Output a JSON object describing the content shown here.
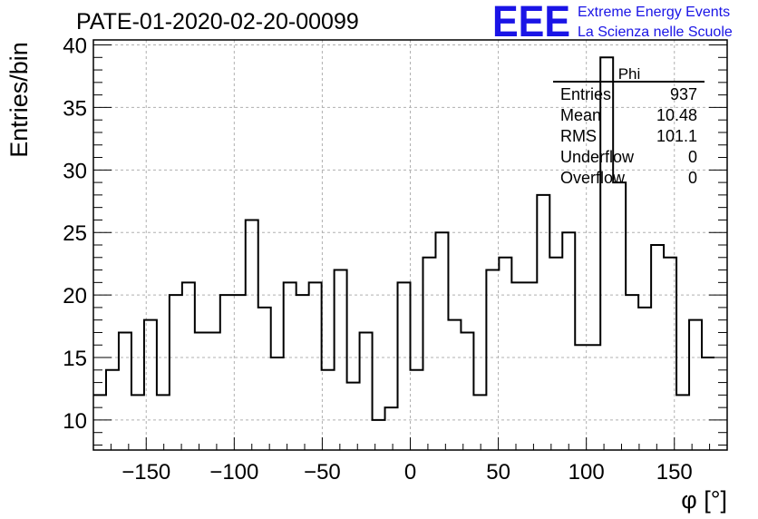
{
  "header": {
    "logo_text": "EEE",
    "logo_line1": "Extreme Energy Events",
    "logo_line2": "La Scienza nelle Scuole",
    "logo_color": "#1a14e6"
  },
  "stats": {
    "name": "Phi",
    "rows": [
      {
        "label": "Entries",
        "value": "937"
      },
      {
        "label": "Mean",
        "value": "10.48"
      },
      {
        "label": "RMS",
        "value": "101.1"
      },
      {
        "label": "Underflow",
        "value": "0"
      },
      {
        "label": "Overflow",
        "value": "0"
      }
    ]
  },
  "chart_data": {
    "type": "histogram",
    "title": "PATE-01-2020-02-20-00099",
    "xlabel": "φ [°]",
    "ylabel": "Entries/bin",
    "xlim": [
      -180,
      180
    ],
    "ylim": [
      7.6,
      40.4
    ],
    "bin_width": 7.2,
    "xticks": [
      -150,
      -100,
      -50,
      0,
      50,
      100,
      150
    ],
    "yticks": [
      10,
      15,
      20,
      25,
      30,
      35,
      40
    ],
    "grid": true,
    "line_color": "#000000",
    "values": [
      12,
      14,
      17,
      12,
      18,
      12,
      20,
      21,
      17,
      17,
      20,
      20,
      26,
      19,
      15,
      21,
      20,
      21,
      14,
      22,
      13,
      17,
      10,
      11,
      21,
      14,
      23,
      25,
      18,
      17,
      12,
      22,
      23,
      21,
      21,
      28,
      23,
      25,
      16,
      16,
      39,
      29,
      20,
      19,
      24,
      23,
      12,
      18,
      15
    ]
  }
}
